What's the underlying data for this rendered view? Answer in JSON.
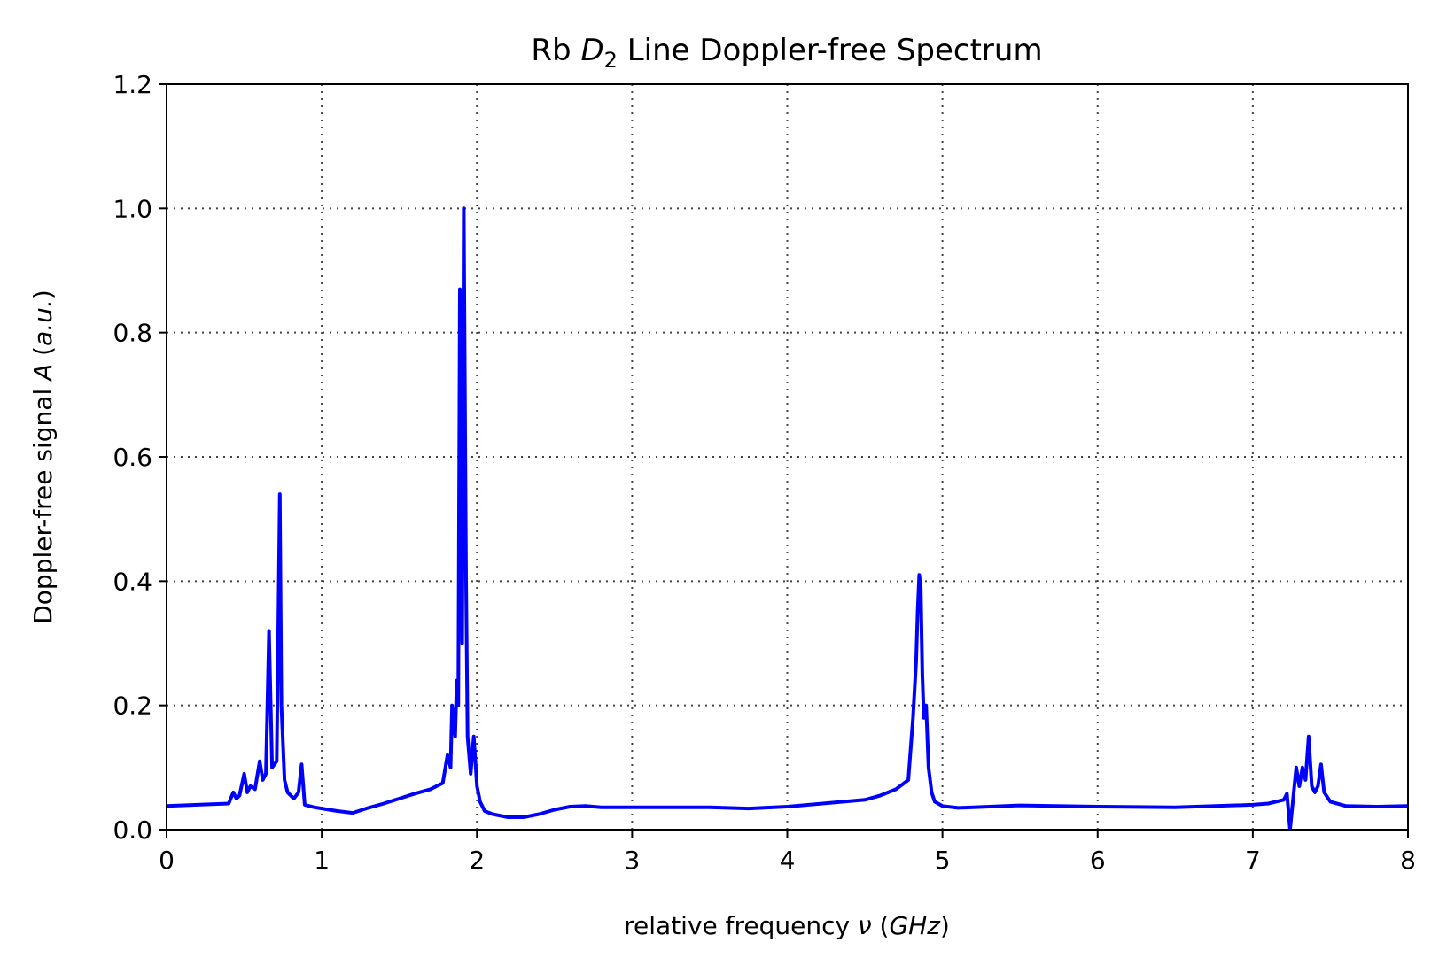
{
  "chart_data": {
    "type": "line",
    "title_parts": [
      "Rb ",
      "D",
      "2",
      " Line Doppler-free Spectrum"
    ],
    "xlabel_parts": [
      "relative frequency ",
      "ν",
      " (",
      "GHz",
      ")"
    ],
    "ylabel_parts": [
      "Doppler-free signal ",
      "A",
      " (",
      "a.u.",
      ")"
    ],
    "xlim": [
      0,
      8
    ],
    "ylim": [
      0,
      1.2
    ],
    "xticks": [
      "0",
      "1",
      "2",
      "3",
      "4",
      "5",
      "6",
      "7",
      "8"
    ],
    "yticks": [
      "0.0",
      "0.2",
      "0.4",
      "0.6",
      "0.8",
      "1.0",
      "1.2"
    ],
    "grid": true,
    "color": "#0000ff",
    "series": [
      {
        "x": [
          0.0,
          0.2,
          0.4,
          0.43,
          0.45,
          0.47,
          0.5,
          0.52,
          0.54,
          0.57,
          0.6,
          0.62,
          0.64,
          0.66,
          0.68,
          0.71,
          0.73,
          0.74,
          0.76,
          0.78,
          0.82,
          0.85,
          0.87,
          0.89,
          0.95,
          1.0,
          1.1,
          1.2,
          1.3,
          1.4,
          1.5,
          1.6,
          1.7,
          1.78,
          1.81,
          1.83,
          1.84,
          1.86,
          1.87,
          1.88,
          1.89,
          1.905,
          1.915,
          1.93,
          1.94,
          1.96,
          1.98,
          2.0,
          2.02,
          2.05,
          2.1,
          2.2,
          2.3,
          2.4,
          2.5,
          2.6,
          2.7,
          2.8,
          3.0,
          3.5,
          3.75,
          4.0,
          4.5,
          4.6,
          4.7,
          4.78,
          4.81,
          4.83,
          4.84,
          4.85,
          4.86,
          4.87,
          4.88,
          4.895,
          4.91,
          4.93,
          4.95,
          5.0,
          5.1,
          5.2,
          5.5,
          6.0,
          6.5,
          7.0,
          7.1,
          7.2,
          7.22,
          7.24,
          7.26,
          7.28,
          7.3,
          7.32,
          7.34,
          7.36,
          7.38,
          7.4,
          7.42,
          7.44,
          7.46,
          7.5,
          7.6,
          7.8,
          8.0
        ],
        "y": [
          0.038,
          0.04,
          0.042,
          0.06,
          0.05,
          0.055,
          0.09,
          0.06,
          0.07,
          0.065,
          0.11,
          0.08,
          0.09,
          0.32,
          0.1,
          0.11,
          0.54,
          0.2,
          0.08,
          0.06,
          0.05,
          0.06,
          0.105,
          0.04,
          0.036,
          0.034,
          0.03,
          0.027,
          0.035,
          0.042,
          0.05,
          0.058,
          0.065,
          0.075,
          0.12,
          0.1,
          0.2,
          0.15,
          0.24,
          0.2,
          0.87,
          0.3,
          1.0,
          0.4,
          0.15,
          0.09,
          0.15,
          0.07,
          0.045,
          0.03,
          0.025,
          0.02,
          0.02,
          0.025,
          0.032,
          0.037,
          0.038,
          0.036,
          0.036,
          0.036,
          0.034,
          0.037,
          0.048,
          0.055,
          0.065,
          0.08,
          0.18,
          0.27,
          0.35,
          0.41,
          0.39,
          0.25,
          0.18,
          0.2,
          0.1,
          0.06,
          0.045,
          0.038,
          0.035,
          0.036,
          0.039,
          0.037,
          0.036,
          0.04,
          0.042,
          0.048,
          0.058,
          0.0,
          0.05,
          0.1,
          0.07,
          0.1,
          0.08,
          0.15,
          0.07,
          0.06,
          0.07,
          0.105,
          0.06,
          0.045,
          0.038,
          0.037,
          0.038
        ]
      }
    ]
  }
}
